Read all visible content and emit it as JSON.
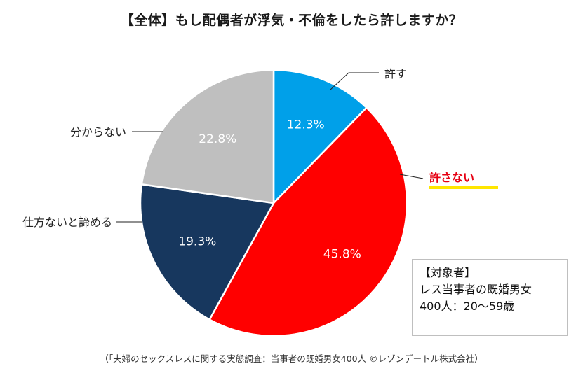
{
  "title": "【全体】もし配偶者が浮気・不倫をしたら許しますか？",
  "chart_data": {
    "type": "pie",
    "title": "【全体】もし配偶者が浮気・不倫をしたら許しますか？",
    "slices": [
      {
        "label": "許す",
        "value": 12.3,
        "value_label": "12.3%",
        "color": "#00a0e9"
      },
      {
        "label": "許さない",
        "value": 45.8,
        "value_label": "45.8%",
        "color": "#ff0000",
        "highlight_color": "#ffe600"
      },
      {
        "label": "仕方ないと諦める",
        "value": 19.3,
        "value_label": "19.3%",
        "color": "#17375e"
      },
      {
        "label": "分からない",
        "value": 22.8,
        "value_label": "22.8%",
        "color": "#bfbfbf"
      }
    ],
    "start": "12 o'clock",
    "direction": "clockwise"
  },
  "info_box": {
    "line1": "【対象者】",
    "line2": "レス当事者の既婚男女",
    "line3": "400人：20～59歳"
  },
  "footnote": "（「夫婦のセックスレスに関する実態調査：当事者の既婚男女400人 ©レゾンデートル株式会社）"
}
